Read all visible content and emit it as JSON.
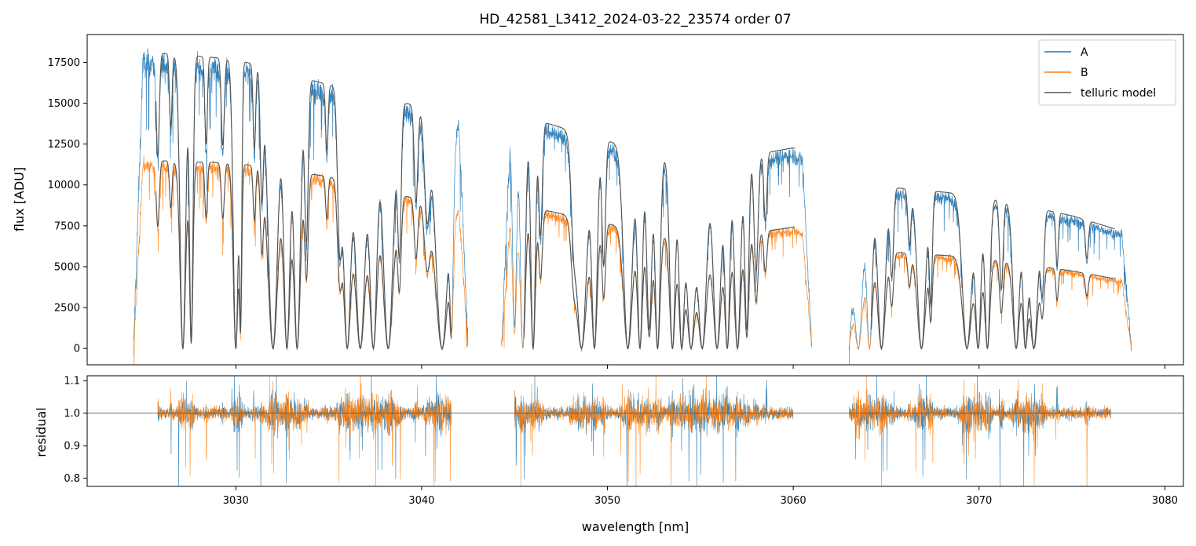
{
  "chart_data": [
    {
      "type": "line",
      "panel": "flux",
      "title": "HD_42581_L3412_2024-03-22_23574  order 07",
      "ylabel": "flux [ADU]",
      "xlim": [
        3022,
        3081
      ],
      "ylim": [
        -1000,
        19200
      ],
      "y_ticks": [
        0,
        2500,
        5000,
        7500,
        10000,
        12500,
        15000,
        17500
      ],
      "legend_placement": "top-right",
      "series": [
        {
          "name": "A",
          "color": "#1f77b4",
          "baseline": [
            [
              3024.5,
              17500
            ],
            [
              3030,
              17000
            ],
            [
              3035,
              15500
            ],
            [
              3040,
              14200
            ],
            [
              3045,
              13800
            ],
            [
              3050,
              12200
            ],
            [
              3055,
              10800
            ],
            [
              3060,
              11800
            ],
            [
              3064,
              9600
            ],
            [
              3070,
              9000
            ],
            [
              3075,
              7800
            ],
            [
              3078,
              6800
            ]
          ]
        },
        {
          "name": "B",
          "color": "#ff7f0e",
          "baseline": [
            [
              3024.5,
              11200
            ],
            [
              3030,
              11000
            ],
            [
              3035,
              10200
            ],
            [
              3040,
              8800
            ],
            [
              3045,
              8600
            ],
            [
              3050,
              7400
            ],
            [
              3055,
              6400
            ],
            [
              3060,
              7200
            ],
            [
              3064,
              5800
            ],
            [
              3070,
              5400
            ],
            [
              3075,
              4600
            ],
            [
              3078,
              4000
            ]
          ]
        },
        {
          "name": "telluric model",
          "color": "#555555"
        }
      ],
      "segments": [
        [
          3024.5,
          3042.5
        ],
        [
          3044.3,
          3061.0
        ],
        [
          3063.0,
          3078.2
        ]
      ],
      "absorption_lines": [
        {
          "x": 3025.8,
          "w": 0.12,
          "d": 0.35
        },
        {
          "x": 3026.5,
          "w": 0.1,
          "d": 0.25
        },
        {
          "x": 3027.15,
          "w": 0.22,
          "d": 1.0
        },
        {
          "x": 3027.6,
          "w": 0.14,
          "d": 0.97
        },
        {
          "x": 3028.4,
          "w": 0.1,
          "d": 0.3
        },
        {
          "x": 3029.3,
          "w": 0.12,
          "d": 0.3
        },
        {
          "x": 3030.0,
          "w": 0.2,
          "d": 1.0
        },
        {
          "x": 3030.25,
          "w": 0.1,
          "d": 0.9
        },
        {
          "x": 3031.0,
          "w": 0.1,
          "d": 0.3
        },
        {
          "x": 3031.4,
          "w": 0.12,
          "d": 0.45
        },
        {
          "x": 3032.0,
          "w": 0.38,
          "d": 1.0
        },
        {
          "x": 3032.75,
          "w": 0.26,
          "d": 1.0
        },
        {
          "x": 3033.3,
          "w": 0.26,
          "d": 1.0
        },
        {
          "x": 3033.8,
          "w": 0.14,
          "d": 0.6
        },
        {
          "x": 3034.9,
          "w": 0.1,
          "d": 0.25
        },
        {
          "x": 3035.6,
          "w": 0.18,
          "d": 0.6
        },
        {
          "x": 3036.0,
          "w": 0.3,
          "d": 1.0
        },
        {
          "x": 3036.7,
          "w": 0.4,
          "d": 1.0
        },
        {
          "x": 3037.4,
          "w": 0.3,
          "d": 1.0
        },
        {
          "x": 3038.2,
          "w": 0.4,
          "d": 1.0
        },
        {
          "x": 3038.8,
          "w": 0.14,
          "d": 0.6
        },
        {
          "x": 3039.7,
          "w": 0.14,
          "d": 0.4
        },
        {
          "x": 3040.3,
          "w": 0.22,
          "d": 0.45
        },
        {
          "x": 3041.1,
          "w": 0.5,
          "d": 1.0
        },
        {
          "x": 3041.6,
          "w": 0.14,
          "d": 0.9
        },
        {
          "x": 3045.0,
          "w": 0.16,
          "d": 0.9
        },
        {
          "x": 3045.45,
          "w": 0.2,
          "d": 1.0
        },
        {
          "x": 3046.0,
          "w": 0.18,
          "d": 1.0
        },
        {
          "x": 3046.4,
          "w": 0.14,
          "d": 0.5
        },
        {
          "x": 3048.2,
          "w": 0.2,
          "d": 0.4
        },
        {
          "x": 3048.6,
          "w": 0.42,
          "d": 1.0
        },
        {
          "x": 3049.3,
          "w": 0.22,
          "d": 1.0
        },
        {
          "x": 3049.8,
          "w": 0.14,
          "d": 0.6
        },
        {
          "x": 3051.1,
          "w": 0.34,
          "d": 1.0
        },
        {
          "x": 3051.75,
          "w": 0.2,
          "d": 1.0
        },
        {
          "x": 3052.25,
          "w": 0.2,
          "d": 0.9
        },
        {
          "x": 3052.7,
          "w": 0.2,
          "d": 1.0
        },
        {
          "x": 3053.5,
          "w": 0.22,
          "d": 1.0
        },
        {
          "x": 3054.0,
          "w": 0.22,
          "d": 1.0
        },
        {
          "x": 3054.5,
          "w": 0.34,
          "d": 1.0
        },
        {
          "x": 3055.1,
          "w": 0.34,
          "d": 1.0
        },
        {
          "x": 3055.9,
          "w": 0.3,
          "d": 1.0
        },
        {
          "x": 3056.45,
          "w": 0.2,
          "d": 1.0
        },
        {
          "x": 3057.0,
          "w": 0.24,
          "d": 1.0
        },
        {
          "x": 3057.5,
          "w": 0.16,
          "d": 0.9
        },
        {
          "x": 3058.0,
          "w": 0.16,
          "d": 0.6
        },
        {
          "x": 3058.5,
          "w": 0.12,
          "d": 0.35
        },
        {
          "x": 3063.5,
          "w": 0.34,
          "d": 1.0
        },
        {
          "x": 3064.1,
          "w": 0.22,
          "d": 1.0
        },
        {
          "x": 3064.75,
          "w": 0.3,
          "d": 1.0
        },
        {
          "x": 3065.3,
          "w": 0.14,
          "d": 0.55
        },
        {
          "x": 3066.25,
          "w": 0.12,
          "d": 0.35
        },
        {
          "x": 3066.9,
          "w": 0.32,
          "d": 1.0
        },
        {
          "x": 3067.4,
          "w": 0.12,
          "d": 0.7
        },
        {
          "x": 3069.35,
          "w": 0.36,
          "d": 1.0
        },
        {
          "x": 3069.95,
          "w": 0.22,
          "d": 1.0
        },
        {
          "x": 3070.45,
          "w": 0.2,
          "d": 1.0
        },
        {
          "x": 3071.2,
          "w": 0.14,
          "d": 0.6
        },
        {
          "x": 3072.0,
          "w": 0.26,
          "d": 1.0
        },
        {
          "x": 3072.5,
          "w": 0.2,
          "d": 1.0
        },
        {
          "x": 3072.95,
          "w": 0.3,
          "d": 1.0
        },
        {
          "x": 3073.4,
          "w": 0.14,
          "d": 0.6
        },
        {
          "x": 3074.2,
          "w": 0.1,
          "d": 0.4
        },
        {
          "x": 3075.8,
          "w": 0.12,
          "d": 0.3
        }
      ]
    },
    {
      "type": "line",
      "panel": "residual",
      "xlabel": "wavelength [nm]",
      "ylabel": "residual",
      "xlim": [
        3022,
        3081
      ],
      "ylim": [
        0.775,
        1.115
      ],
      "x_ticks": [
        3030,
        3040,
        3050,
        3060,
        3070,
        3080
      ],
      "y_ticks": [
        0.8,
        0.9,
        1.0,
        1.1
      ],
      "reference_line": 1.0,
      "segments": [
        [
          3025.8,
          3041.6
        ],
        [
          3045.0,
          3060.0
        ],
        [
          3063.0,
          3077.1
        ]
      ],
      "series": [
        {
          "name": "A",
          "color": "#1f77b4"
        },
        {
          "name": "B",
          "color": "#ff7f0e"
        }
      ]
    }
  ]
}
